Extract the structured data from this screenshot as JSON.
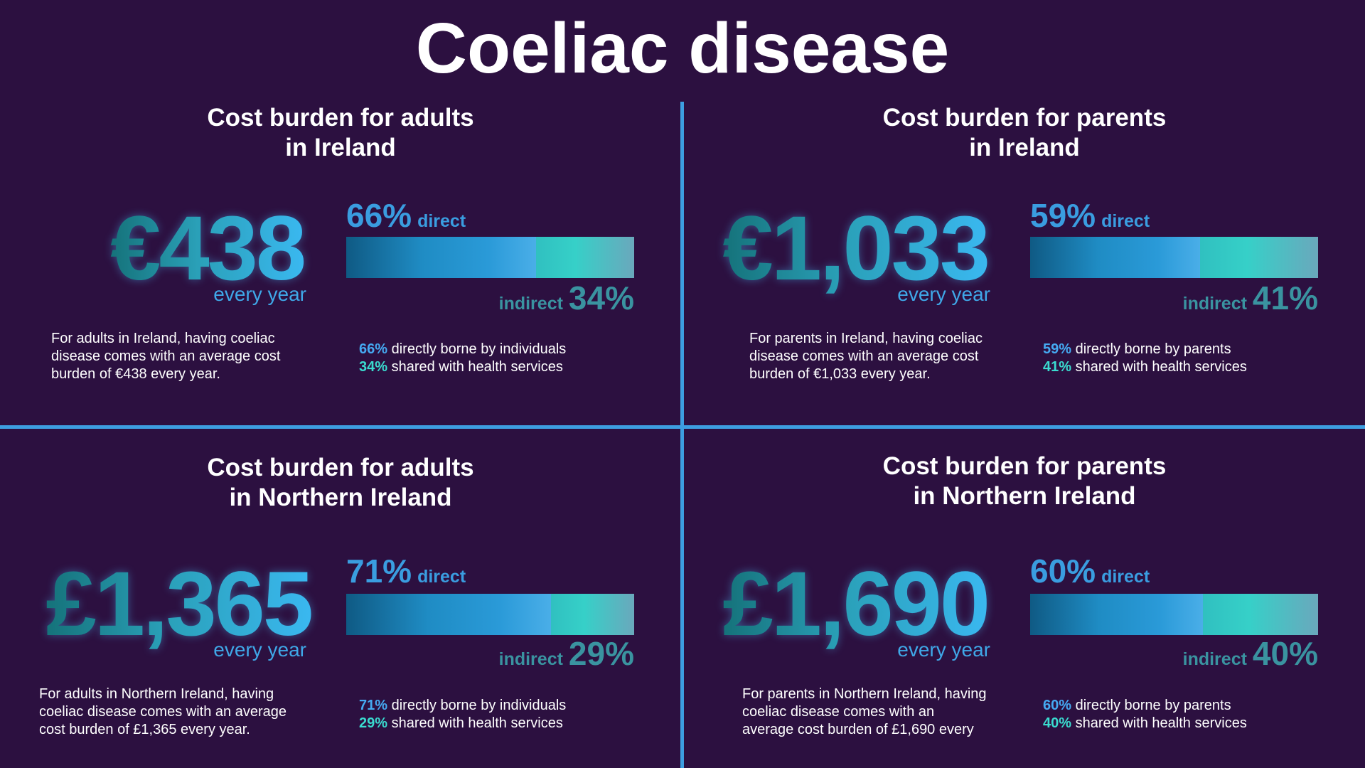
{
  "title": "Coeliac disease",
  "panels": [
    {
      "title_lines": [
        "Cost burden for adults",
        "in Ireland"
      ],
      "amount": "€438",
      "every_year": "every year",
      "description_lines": [
        "For adults in Ireland, having coeliac",
        "disease comes with an average cost",
        "burden of €438 every year."
      ],
      "direct_pct": "66%",
      "direct_word": "direct",
      "indirect_word": "indirect",
      "indirect_pct": "34%",
      "direct_fraction": 0.66,
      "direct_text": "directly borne by individuals",
      "indirect_text": "shared with health services"
    },
    {
      "title_lines": [
        "Cost burden for parents",
        "in Ireland"
      ],
      "amount": "€1,033",
      "every_year": "every year",
      "description_lines": [
        "For parents in Ireland, having coeliac",
        "disease comes with an average cost",
        "burden of €1,033 every year."
      ],
      "direct_pct": "59%",
      "direct_word": "direct",
      "indirect_word": "indirect",
      "indirect_pct": "41%",
      "direct_fraction": 0.59,
      "direct_text": "directly borne by parents",
      "indirect_text": "shared with health services"
    },
    {
      "title_lines": [
        "Cost burden for adults",
        "in Northern Ireland"
      ],
      "amount": "£1,365",
      "every_year": "every year",
      "description_lines": [
        "For adults in Northern Ireland, having",
        "coeliac disease comes with an average",
        "cost burden of £1,365 every year."
      ],
      "direct_pct": "71%",
      "direct_word": "direct",
      "indirect_word": "indirect",
      "indirect_pct": "29%",
      "direct_fraction": 0.71,
      "direct_text": "directly borne by individuals",
      "indirect_text": "shared with health services"
    },
    {
      "title_lines": [
        "Cost burden for parents",
        "in Northern Ireland"
      ],
      "amount": "£1,690",
      "every_year": "every year",
      "description_lines": [
        "For parents in Northern Ireland, having",
        "coeliac disease comes with an",
        "average cost burden of £1,690 every"
      ],
      "direct_pct": "60%",
      "direct_word": "direct",
      "indirect_word": "indirect",
      "indirect_pct": "40%",
      "direct_fraction": 0.6,
      "direct_text": "directly borne by parents",
      "indirect_text": "shared with health services"
    }
  ]
}
